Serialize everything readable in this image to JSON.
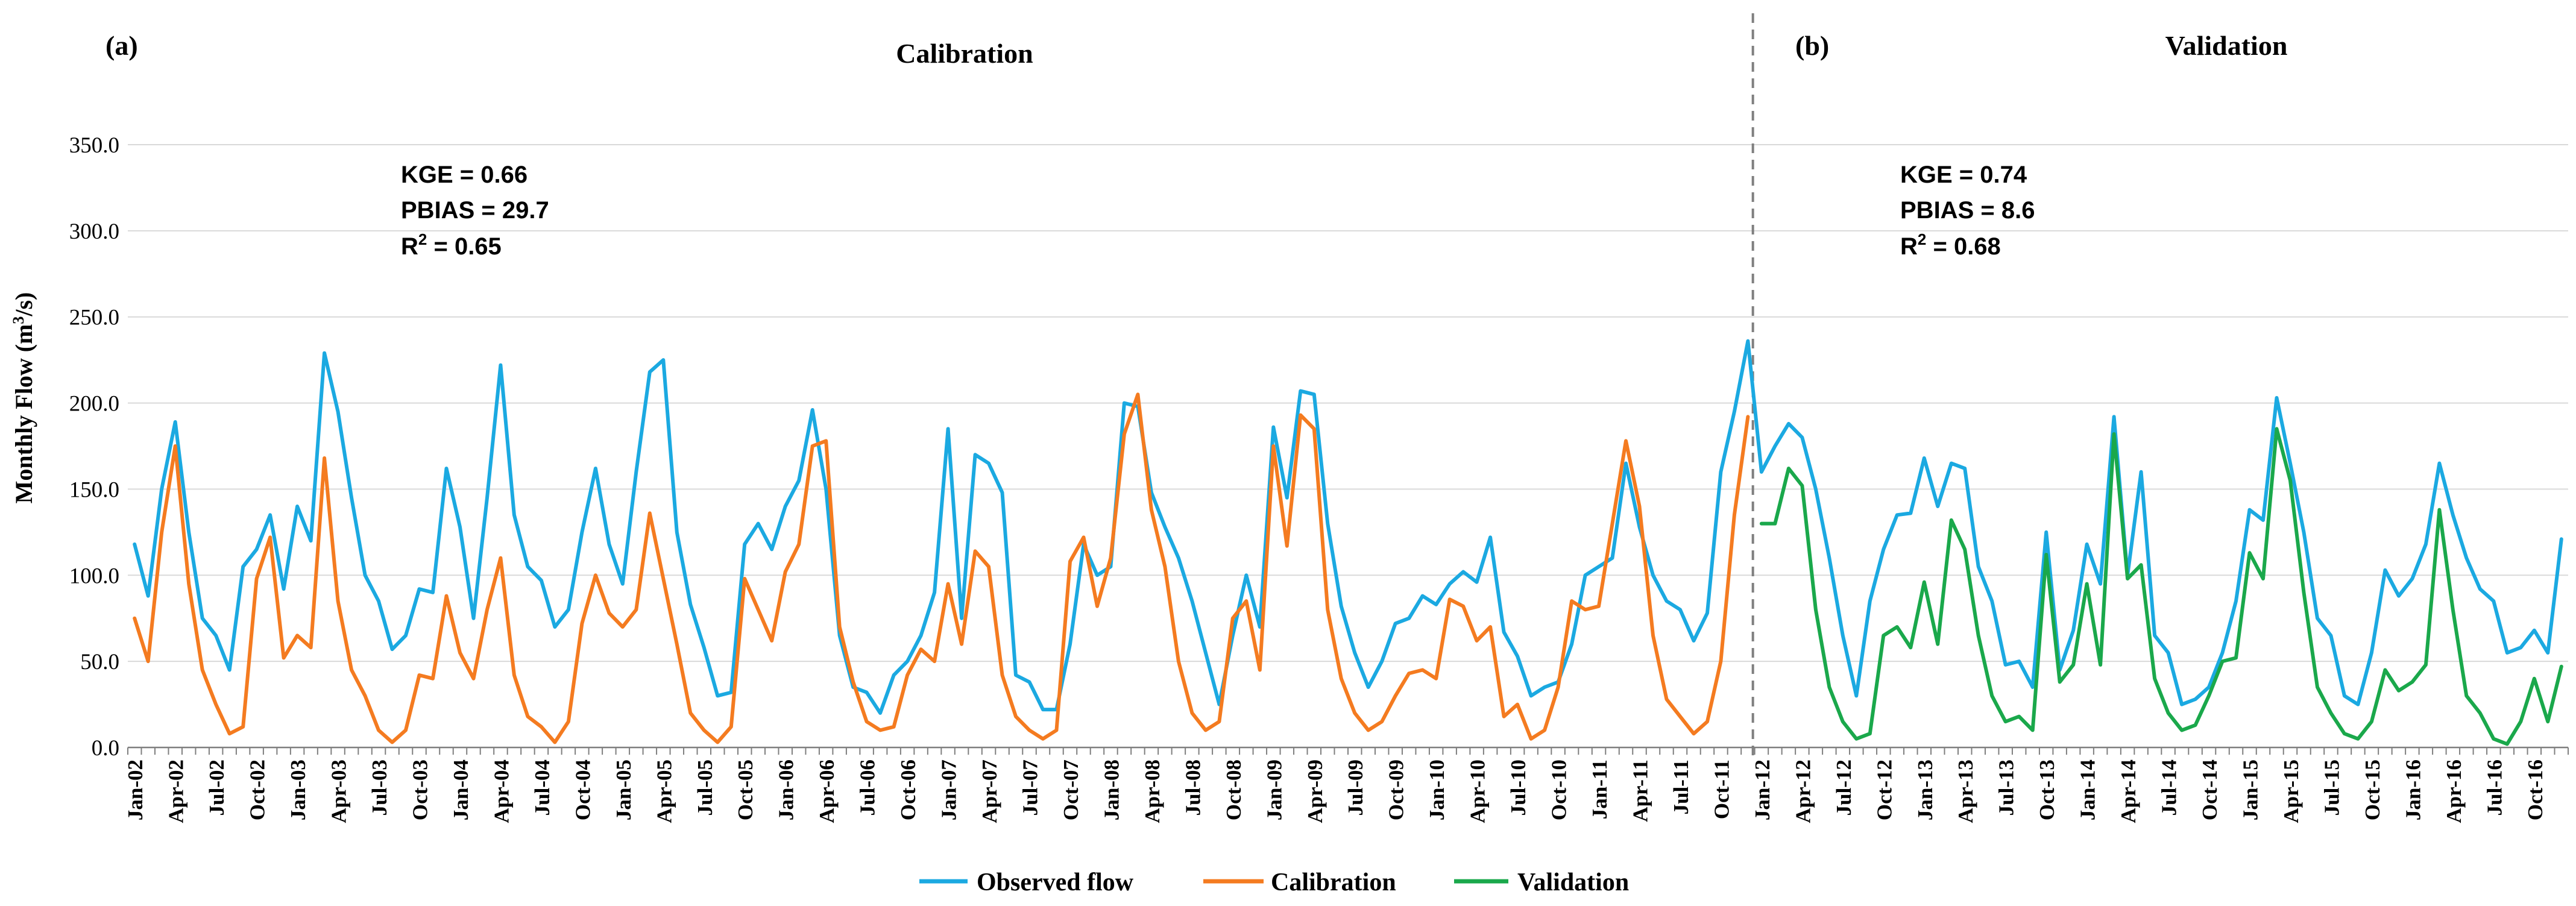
{
  "chart_data": {
    "type": "line",
    "ylabel_main": "Monthly Flow (m",
    "ylabel_sup": "3",
    "ylabel_tail": "/s)",
    "ylim": [
      0,
      350
    ],
    "ytick_labels": [
      "0.0",
      "50.0",
      "100.0",
      "150.0",
      "200.0",
      "250.0",
      "300.0",
      "350.0"
    ],
    "ytick_values": [
      0,
      50,
      100,
      150,
      200,
      250,
      300,
      350
    ],
    "start_year": 2002,
    "months_count": 180,
    "xtick_labels": [
      "Jan-02",
      "Apr-02",
      "Jul-02",
      "Oct-02",
      "Jan-03",
      "Apr-03",
      "Jul-03",
      "Oct-03",
      "Jan-04",
      "Apr-04",
      "Jul-04",
      "Oct-04",
      "Jan-05",
      "Apr-05",
      "Jul-05",
      "Oct-05",
      "Jan-06",
      "Apr-06",
      "Jul-06",
      "Oct-06",
      "Jan-07",
      "Apr-07",
      "Jul-07",
      "Oct-07",
      "Jan-08",
      "Apr-08",
      "Jul-08",
      "Oct-08",
      "Jan-09",
      "Apr-09",
      "Jul-09",
      "Oct-09",
      "Jan-10",
      "Apr-10",
      "Jul-10",
      "Oct-10",
      "Jan-11",
      "Apr-11",
      "Jul-11",
      "Oct-11",
      "Jan-12",
      "Apr-12",
      "Jul-12",
      "Oct-12",
      "Jan-13",
      "Apr-13",
      "Jul-13",
      "Oct-13",
      "Jan-14",
      "Apr-14",
      "Jul-14",
      "Oct-14",
      "Jan-15",
      "Apr-15",
      "Jul-15",
      "Oct-15",
      "Jan-16",
      "Apr-16",
      "Jul-16",
      "Oct-16"
    ],
    "divider_month_index": 120,
    "panels": [
      {
        "id": "a",
        "label": "(a)",
        "title": "Calibration",
        "stats": [
          "KGE = 0.66",
          "PBIAS = 29.7"
        ],
        "r2_base": "R",
        "r2_sup": "2",
        "r2_tail": " = 0.65"
      },
      {
        "id": "b",
        "label": "(b)",
        "title": "Validation",
        "stats": [
          "KGE = 0.74",
          "PBIAS = 8.6"
        ],
        "r2_base": "R",
        "r2_sup": "2",
        "r2_tail": " = 0.68"
      }
    ],
    "series": [
      {
        "name": "Observed flow",
        "color": "#1ba9e1",
        "start_index": 0,
        "values": [
          118,
          88,
          150,
          189,
          125,
          75,
          65,
          45,
          105,
          115,
          135,
          92,
          140,
          120,
          229,
          195,
          145,
          100,
          85,
          57,
          65,
          92,
          90,
          162,
          128,
          75,
          145,
          222,
          135,
          105,
          97,
          70,
          80,
          125,
          162,
          118,
          95,
          160,
          218,
          225,
          125,
          83,
          58,
          30,
          32,
          118,
          130,
          115,
          140,
          155,
          196,
          150,
          65,
          35,
          32,
          20,
          42,
          50,
          65,
          90,
          185,
          75,
          170,
          165,
          148,
          42,
          38,
          22,
          22,
          60,
          118,
          100,
          105,
          200,
          198,
          148,
          128,
          110,
          85,
          55,
          25,
          65,
          100,
          70,
          186,
          145,
          207,
          205,
          130,
          82,
          55,
          35,
          50,
          72,
          75,
          88,
          83,
          95,
          102,
          96,
          122,
          67,
          53,
          30,
          35,
          38,
          60,
          100,
          105,
          110,
          165,
          128,
          100,
          85,
          80,
          62,
          78,
          160,
          195,
          236,
          160,
          175,
          188,
          180,
          150,
          110,
          65,
          30,
          85,
          115,
          135,
          136,
          168,
          140,
          165,
          162,
          105,
          85,
          48,
          50,
          35,
          125,
          45,
          68,
          118,
          95,
          192,
          100,
          160,
          65,
          55,
          25,
          28,
          35,
          55,
          85,
          138,
          132,
          203,
          165,
          125,
          75,
          65,
          30,
          25,
          55,
          103,
          88,
          98,
          118,
          165,
          135,
          110,
          92,
          85,
          55,
          58,
          68,
          55,
          121
        ]
      },
      {
        "name": "Calibration",
        "color": "#f47b20",
        "start_index": 0,
        "values": [
          75,
          50,
          125,
          175,
          95,
          45,
          25,
          8,
          12,
          98,
          122,
          52,
          65,
          58,
          168,
          85,
          45,
          30,
          10,
          3,
          10,
          42,
          40,
          88,
          55,
          40,
          80,
          110,
          42,
          18,
          12,
          3,
          15,
          72,
          100,
          78,
          70,
          80,
          136,
          98,
          60,
          20,
          10,
          3,
          12,
          98,
          80,
          62,
          102,
          118,
          175,
          178,
          70,
          38,
          15,
          10,
          12,
          42,
          57,
          50,
          95,
          60,
          114,
          105,
          42,
          18,
          10,
          5,
          10,
          108,
          122,
          82,
          110,
          182,
          205,
          138,
          105,
          50,
          20,
          10,
          15,
          75,
          85,
          45,
          175,
          117,
          193,
          185,
          80,
          40,
          20,
          10,
          15,
          30,
          43,
          45,
          40,
          86,
          82,
          62,
          70,
          18,
          25,
          5,
          10,
          35,
          85,
          80,
          82,
          130,
          178,
          140,
          65,
          28,
          18,
          8,
          15,
          50,
          135,
          192
        ]
      },
      {
        "name": "Validation",
        "color": "#1aa84b",
        "start_index": 120,
        "values": [
          130,
          130,
          162,
          152,
          80,
          35,
          15,
          5,
          8,
          65,
          70,
          58,
          96,
          60,
          132,
          115,
          65,
          30,
          15,
          18,
          10,
          112,
          38,
          48,
          95,
          48,
          182,
          98,
          106,
          40,
          20,
          10,
          13,
          30,
          50,
          52,
          113,
          98,
          185,
          155,
          90,
          35,
          20,
          8,
          5,
          15,
          45,
          33,
          38,
          48,
          138,
          80,
          30,
          20,
          5,
          2,
          15,
          40,
          15,
          47
        ]
      }
    ]
  }
}
